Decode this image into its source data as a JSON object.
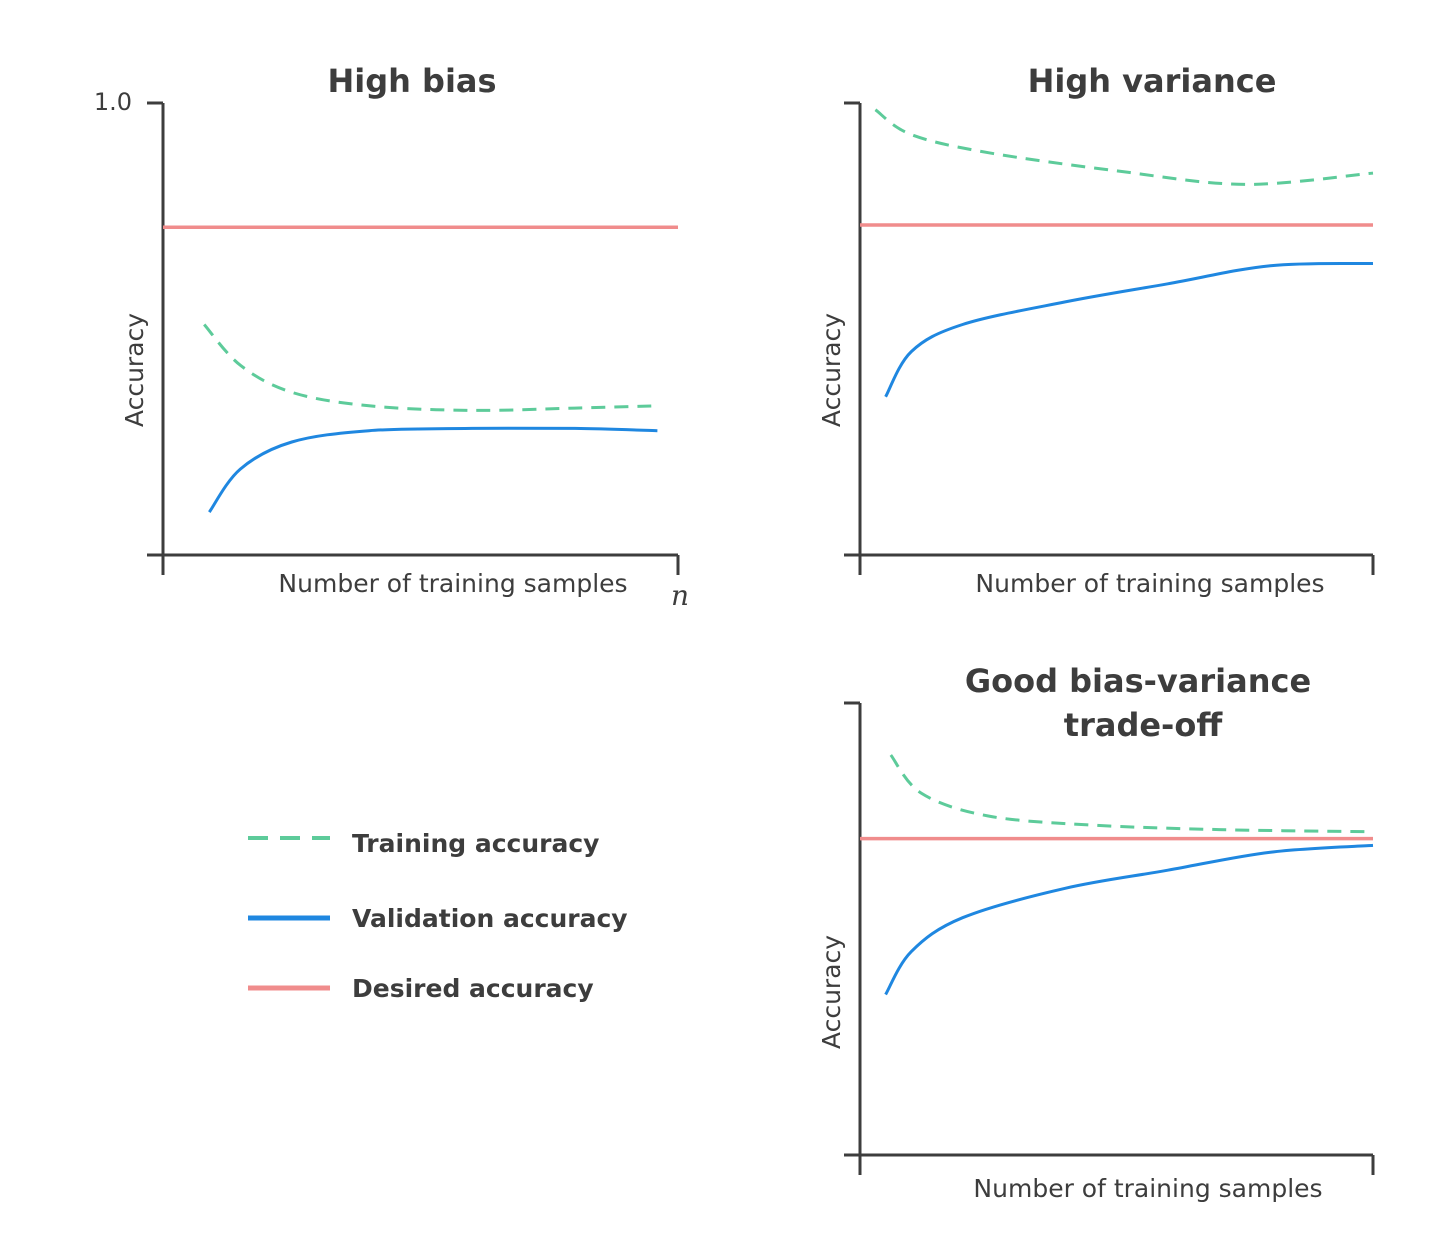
{
  "colors": {
    "training": "#5dcb9a",
    "validation": "#1f87e0",
    "desired": "#f08c8c",
    "axis": "#3d3d3d"
  },
  "legend": [
    {
      "key": "training",
      "label": "Training accuracy",
      "style": "dashed"
    },
    {
      "key": "validation",
      "label": "Validation accuracy",
      "style": "solid"
    },
    {
      "key": "desired",
      "label": "Desired accuracy",
      "style": "solid"
    }
  ],
  "chart_data": [
    {
      "type": "line",
      "title": "High bias",
      "xlabel": "Number of training samples",
      "ylabel": "Accuracy",
      "ytick_label": "1.0",
      "xtick_label": "n",
      "xlim": [
        0,
        1
      ],
      "ylim": [
        0,
        1
      ],
      "series": [
        {
          "key": "desired",
          "x": [
            0,
            1
          ],
          "y": [
            0.725,
            0.725
          ]
        },
        {
          "key": "training",
          "x": [
            0.08,
            0.15,
            0.25,
            0.4,
            0.6,
            0.8,
            0.96
          ],
          "y": [
            0.51,
            0.42,
            0.36,
            0.33,
            0.32,
            0.325,
            0.33
          ]
        },
        {
          "key": "validation",
          "x": [
            0.09,
            0.15,
            0.25,
            0.4,
            0.6,
            0.8,
            0.96
          ],
          "y": [
            0.095,
            0.19,
            0.25,
            0.275,
            0.28,
            0.28,
            0.275
          ]
        }
      ]
    },
    {
      "type": "line",
      "title": "High variance",
      "xlabel": "Number of training samples",
      "ylabel": "Accuracy",
      "xlim": [
        0,
        1
      ],
      "ylim": [
        0,
        1
      ],
      "series": [
        {
          "key": "desired",
          "x": [
            0,
            1
          ],
          "y": [
            0.73,
            0.73
          ]
        },
        {
          "key": "training",
          "x": [
            0.03,
            0.1,
            0.25,
            0.5,
            0.75,
            1.0
          ],
          "y": [
            0.985,
            0.93,
            0.89,
            0.85,
            0.82,
            0.845
          ]
        },
        {
          "key": "validation",
          "x": [
            0.05,
            0.1,
            0.2,
            0.4,
            0.6,
            0.8,
            1.0
          ],
          "y": [
            0.35,
            0.45,
            0.51,
            0.56,
            0.6,
            0.64,
            0.645
          ]
        }
      ]
    },
    {
      "type": "line",
      "title": "Good bias-variance",
      "title_line2": "trade-off",
      "xlabel": "Number of training samples",
      "ylabel": "Accuracy",
      "xlim": [
        0,
        1
      ],
      "ylim": [
        0,
        1
      ],
      "series": [
        {
          "key": "desired",
          "x": [
            0,
            1
          ],
          "y": [
            0.7,
            0.7
          ]
        },
        {
          "key": "training",
          "x": [
            0.06,
            0.12,
            0.25,
            0.45,
            0.7,
            1.0
          ],
          "y": [
            0.885,
            0.8,
            0.75,
            0.73,
            0.72,
            0.715
          ]
        },
        {
          "key": "validation",
          "x": [
            0.05,
            0.1,
            0.2,
            0.4,
            0.6,
            0.8,
            1.0
          ],
          "y": [
            0.355,
            0.45,
            0.525,
            0.59,
            0.63,
            0.67,
            0.685
          ]
        }
      ]
    }
  ]
}
